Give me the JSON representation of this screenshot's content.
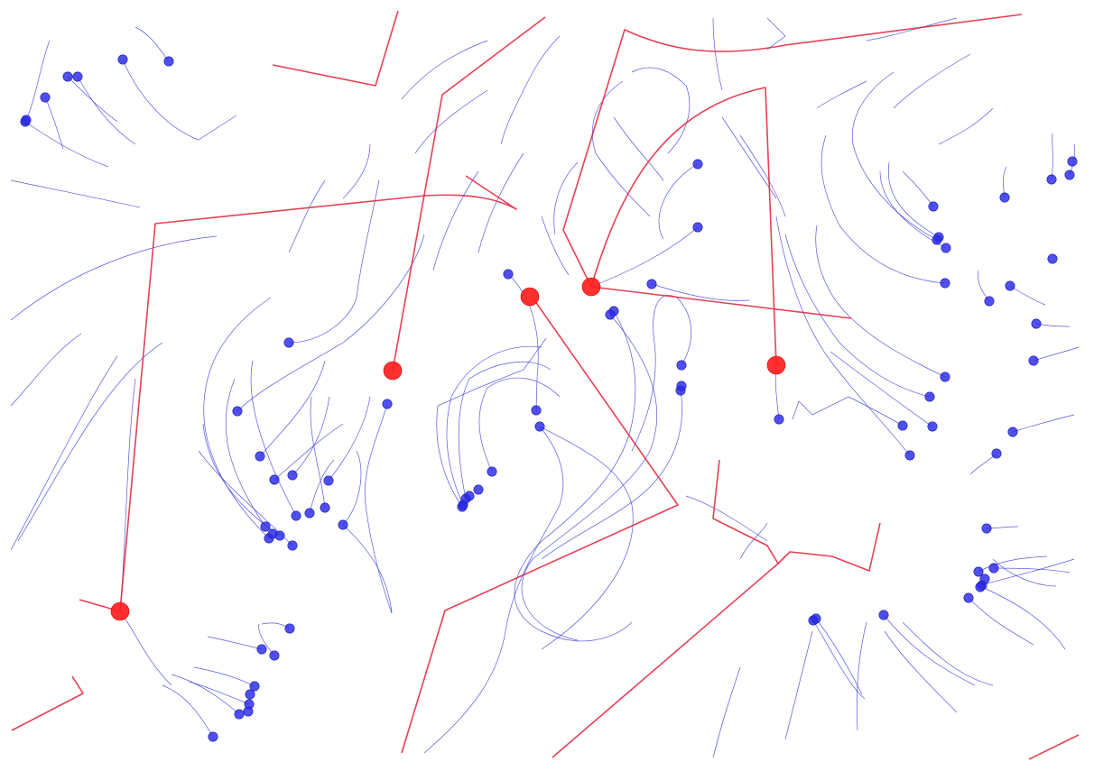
{
  "colors": {
    "background": "#ffffff",
    "agent_blue": "#2a2ae8",
    "trail_blue": "#3b3bd9",
    "agent_red": "#ff1a1a",
    "path_red": "#e0203a"
  }
}
